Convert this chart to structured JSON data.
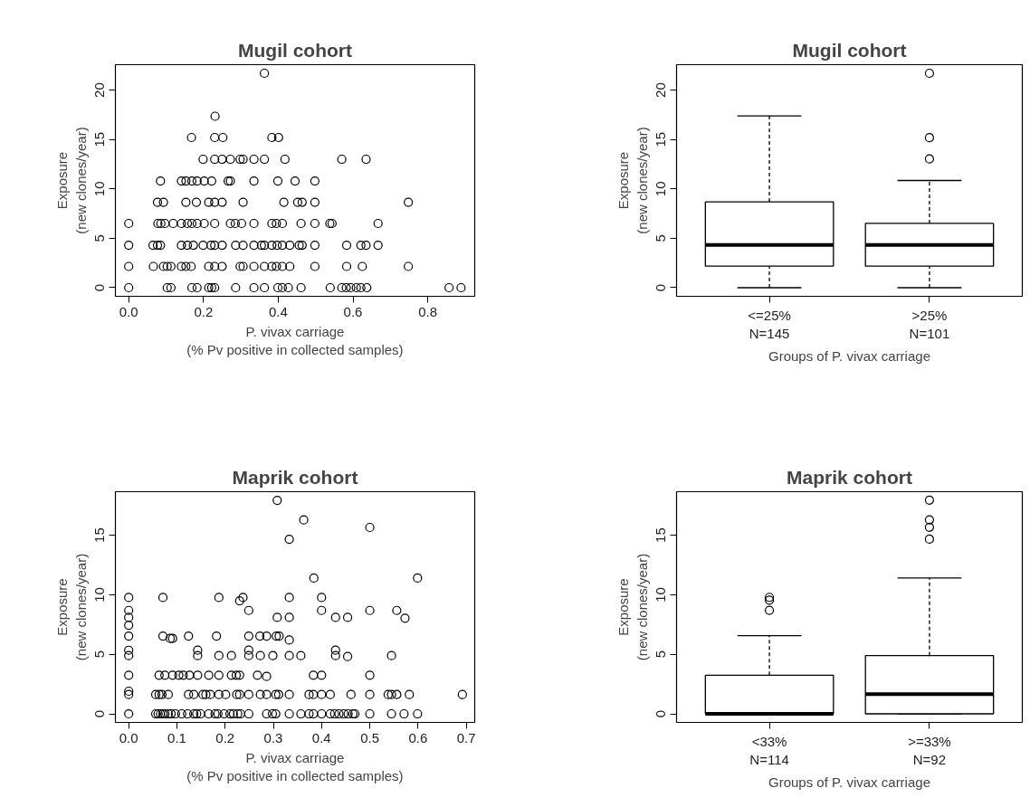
{
  "chart_data": [
    {
      "type": "scatter",
      "title": "Mugil cohort",
      "xlabel": "P. vivax carriage\n(% Pv positive in collected samples)",
      "ylabel": "Exposure\n(new clones/year)",
      "marker": "circle",
      "grid": false,
      "xlim": [
        -0.0356,
        0.9256
      ],
      "ylim": [
        -0.87,
        22.57
      ],
      "xticks": [
        {
          "value": 0,
          "label": "0.0"
        },
        {
          "value": 0.2,
          "label": "0.2"
        },
        {
          "value": 0.4,
          "label": "0.4"
        },
        {
          "value": 0.6,
          "label": "0.6"
        },
        {
          "value": 0.8,
          "label": "0.8"
        }
      ],
      "yticks": [
        0,
        5,
        10,
        15,
        20
      ],
      "x": [
        0,
        0.103,
        0.113,
        0.169,
        0.183,
        0.214,
        0.222,
        0.23,
        0.286,
        0.335,
        0.363,
        0.399,
        0.411,
        0.427,
        0.461,
        0.539,
        0.57,
        0.582,
        0.594,
        0.609,
        0.621,
        0.637,
        0.857,
        0.889,
        0,
        0.066,
        0.093,
        0.103,
        0.113,
        0.141,
        0.153,
        0.167,
        0.214,
        0.23,
        0.25,
        0.298,
        0.306,
        0.335,
        0.363,
        0.383,
        0.395,
        0.411,
        0.431,
        0.498,
        0.583,
        0.625,
        0.748,
        0,
        0.065,
        0.077,
        0.085,
        0.141,
        0.157,
        0.173,
        0.199,
        0.22,
        0.23,
        0.25,
        0.286,
        0.306,
        0.335,
        0.355,
        0.363,
        0.383,
        0.397,
        0.411,
        0.431,
        0.456,
        0.464,
        0.498,
        0.583,
        0.621,
        0.635,
        0.667,
        0,
        0.078,
        0.086,
        0.097,
        0.119,
        0.141,
        0.157,
        0.169,
        0.183,
        0.202,
        0.23,
        0.272,
        0.285,
        0.302,
        0.335,
        0.383,
        0.395,
        0.411,
        0.461,
        0.498,
        0.538,
        0.544,
        0.667,
        0.077,
        0.093,
        0.153,
        0.181,
        0.214,
        0.23,
        0.25,
        0.306,
        0.415,
        0.452,
        0.464,
        0.498,
        0.748,
        0.085,
        0.141,
        0.153,
        0.169,
        0.183,
        0.202,
        0.222,
        0.266,
        0.272,
        0.335,
        0.399,
        0.445,
        0.498,
        0.199,
        0.23,
        0.25,
        0.272,
        0.298,
        0.306,
        0.335,
        0.363,
        0.418,
        0.57,
        0.635,
        0.168,
        0.23,
        0.252,
        0.383,
        0.401,
        0.231,
        0.363
      ],
      "values": [
        0,
        0,
        0,
        0,
        0,
        0,
        0,
        0,
        0,
        0,
        0,
        0,
        0,
        0,
        0,
        0,
        0,
        0,
        0,
        0,
        0,
        0,
        0,
        0,
        2.15,
        2.15,
        2.15,
        2.15,
        2.15,
        2.15,
        2.15,
        2.15,
        2.15,
        2.15,
        2.15,
        2.15,
        2.15,
        2.15,
        2.15,
        2.15,
        2.15,
        2.15,
        2.15,
        2.15,
        2.15,
        2.15,
        2.15,
        4.3,
        4.3,
        4.3,
        4.3,
        4.3,
        4.3,
        4.3,
        4.3,
        4.3,
        4.3,
        4.3,
        4.3,
        4.3,
        4.3,
        4.3,
        4.3,
        4.3,
        4.3,
        4.3,
        4.3,
        4.3,
        4.3,
        4.3,
        4.3,
        4.3,
        4.3,
        4.3,
        6.5,
        6.5,
        6.5,
        6.5,
        6.5,
        6.5,
        6.5,
        6.5,
        6.5,
        6.5,
        6.5,
        6.5,
        6.5,
        6.5,
        6.5,
        6.5,
        6.5,
        6.5,
        6.5,
        6.5,
        6.5,
        6.5,
        6.5,
        8.65,
        8.65,
        8.65,
        8.65,
        8.65,
        8.65,
        8.65,
        8.65,
        8.65,
        8.65,
        8.65,
        8.65,
        8.65,
        10.8,
        10.8,
        10.8,
        10.8,
        10.8,
        10.8,
        10.8,
        10.8,
        10.8,
        10.8,
        10.8,
        10.8,
        10.8,
        13,
        13,
        13,
        13,
        13,
        13,
        13,
        13,
        13,
        13,
        13,
        15.2,
        15.2,
        15.2,
        15.2,
        15.2,
        17.35,
        21.7
      ]
    },
    {
      "type": "box",
      "title": "Mugil cohort",
      "xlabel": "Groups of P. vivax carriage",
      "ylabel": "Exposure\n(new clones/year)",
      "grid": false,
      "categories": [
        "<=25%\nN=145",
        ">25%\nN=101"
      ],
      "ylim": [
        -0.87,
        22.57
      ],
      "yticks": [
        0,
        5,
        10,
        15,
        20
      ],
      "boxes": [
        {
          "low": 0,
          "q1": 2.18,
          "median": 4.33,
          "q3": 8.69,
          "high": 17.39
        },
        {
          "low": 0,
          "q1": 2.18,
          "median": 4.33,
          "q3": 6.51,
          "high": 10.85,
          "outliers": [
            13.03,
            15.18,
            21.7
          ]
        }
      ]
    },
    {
      "type": "scatter",
      "title": "Maprik cohort",
      "xlabel": "P. vivax carriage\n(% Pv positive in collected samples)",
      "ylabel": "Exposure\n(new clones/year)",
      "marker": "circle",
      "grid": false,
      "xlim": [
        -0.0276,
        0.7176
      ],
      "ylim": [
        -0.72,
        18.65
      ],
      "xticks": [
        {
          "value": 0,
          "label": "0.0"
        },
        {
          "value": 0.1,
          "label": "0.1"
        },
        {
          "value": 0.2,
          "label": "0.2"
        },
        {
          "value": 0.3,
          "label": "0.3"
        },
        {
          "value": 0.4,
          "label": "0.4"
        },
        {
          "value": 0.5,
          "label": "0.5"
        },
        {
          "value": 0.6,
          "label": "0.6"
        },
        {
          "value": 0.7,
          "label": "0.7"
        }
      ],
      "yticks": [
        0,
        5,
        10,
        15
      ],
      "x": [
        0,
        0.056,
        0.061,
        0.066,
        0.071,
        0.075,
        0.082,
        0.088,
        0.097,
        0.11,
        0.122,
        0.135,
        0.141,
        0.149,
        0.166,
        0.179,
        0.185,
        0.198,
        0.21,
        0.217,
        0.226,
        0.232,
        0.249,
        0.286,
        0.298,
        0.305,
        0.333,
        0.357,
        0.374,
        0.383,
        0.4,
        0.418,
        0.427,
        0.436,
        0.446,
        0.455,
        0.465,
        0.469,
        0.5,
        0.545,
        0.571,
        0.599,
        0,
        0.056,
        0.063,
        0.069,
        0.082,
        0.124,
        0.135,
        0.154,
        0.16,
        0.169,
        0.187,
        0.201,
        0.224,
        0.23,
        0.249,
        0.273,
        0.286,
        0.305,
        0.311,
        0.333,
        0.374,
        0.383,
        0.4,
        0.418,
        0.461,
        0.5,
        0.538,
        0.545,
        0.556,
        0.582,
        0.692,
        0,
        0,
        0.063,
        0.075,
        0.091,
        0.104,
        0.113,
        0.126,
        0.143,
        0.166,
        0.187,
        0.213,
        0.223,
        0.23,
        0.267,
        0.286,
        0.383,
        0.4,
        0.5,
        0,
        0.143,
        0.187,
        0.213,
        0.249,
        0.273,
        0.299,
        0.333,
        0.357,
        0.429,
        0.454,
        0.545,
        0,
        0.143,
        0.249,
        0.429,
        0,
        0.071,
        0.086,
        0.091,
        0.124,
        0.182,
        0.249,
        0.272,
        0.286,
        0.306,
        0.312,
        0.333,
        0,
        0,
        0.308,
        0.333,
        0.429,
        0.454,
        0.573,
        0,
        0.249,
        0.4,
        0.5,
        0.556,
        0.23,
        0,
        0.071,
        0.187,
        0.237,
        0.333,
        0.4,
        0.384,
        0.599,
        0.333,
        0.5,
        0.363,
        0.308
      ],
      "values": [
        0,
        0,
        0,
        0,
        0,
        0,
        0,
        0,
        0,
        0,
        0,
        0,
        0,
        0,
        0,
        0,
        0,
        0,
        0,
        0,
        0,
        0,
        0,
        0,
        0,
        0,
        0,
        0,
        0,
        0,
        0,
        0,
        0,
        0,
        0,
        0,
        0,
        0,
        0,
        0,
        0,
        0,
        1.62,
        1.62,
        1.62,
        1.62,
        1.62,
        1.62,
        1.62,
        1.62,
        1.62,
        1.62,
        1.62,
        1.62,
        1.62,
        1.62,
        1.62,
        1.62,
        1.62,
        1.62,
        1.62,
        1.62,
        1.62,
        1.62,
        1.62,
        1.62,
        1.62,
        1.62,
        1.62,
        1.62,
        1.62,
        1.62,
        1.62,
        1.9,
        3.24,
        3.24,
        3.24,
        3.24,
        3.24,
        3.24,
        3.24,
        3.24,
        3.24,
        3.24,
        3.24,
        3.24,
        3.24,
        3.24,
        3.14,
        3.24,
        3.24,
        3.24,
        4.89,
        4.89,
        4.89,
        4.89,
        4.89,
        4.89,
        4.89,
        4.89,
        4.89,
        4.89,
        4.81,
        4.89,
        5.34,
        5.34,
        5.34,
        5.34,
        6.53,
        6.53,
        6.33,
        6.33,
        6.53,
        6.53,
        6.53,
        6.53,
        6.53,
        6.53,
        6.53,
        6.2,
        7.44,
        8.1,
        8.1,
        8.1,
        8.1,
        8.1,
        8.03,
        8.68,
        8.68,
        8.68,
        8.68,
        8.68,
        9.49,
        9.77,
        9.77,
        9.77,
        9.77,
        9.77,
        9.77,
        11.4,
        11.4,
        14.66,
        15.65,
        16.28,
        17.92
      ]
    },
    {
      "type": "box",
      "title": "Maprik cohort",
      "xlabel": "Groups of P. vivax carriage",
      "ylabel": "Exposure\n(new clones/year)",
      "grid": false,
      "categories": [
        "<33%\nN=114",
        ">=33%\nN=92"
      ],
      "ylim": [
        -0.72,
        18.65
      ],
      "yticks": [
        0,
        5,
        10,
        15
      ],
      "boxes": [
        {
          "low": 0,
          "q1": 0,
          "median": 0,
          "q3": 3.24,
          "high": 6.56,
          "outliers": [
            8.69,
            9.55,
            9.78
          ]
        },
        {
          "low": 0,
          "q1": 0,
          "median": 1.65,
          "q3": 4.89,
          "high": 11.4,
          "outliers": [
            14.67,
            15.66,
            16.29,
            17.94
          ]
        }
      ]
    }
  ]
}
